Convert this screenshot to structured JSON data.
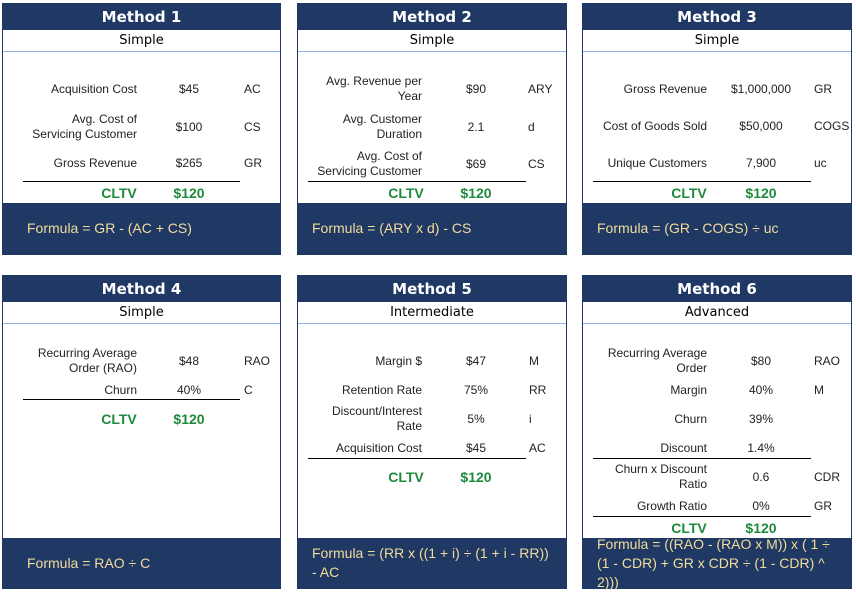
{
  "m1": {
    "title": "Method 1",
    "level": "Simple",
    "rows": [
      {
        "label": "Acquisition Cost",
        "value": "$45",
        "abbr": "AC"
      },
      {
        "label": "Avg. Cost of Servicing Customer",
        "value": "$100",
        "abbr": "CS"
      },
      {
        "label": "Gross Revenue",
        "value": "$265",
        "abbr": "GR"
      }
    ],
    "cltv_label": "CLTV",
    "cltv_value": "$120",
    "formula": "Formula = GR - (AC + CS)"
  },
  "m2": {
    "title": "Method 2",
    "level": "Simple",
    "rows": [
      {
        "label": "Avg. Revenue per Year",
        "value": "$90",
        "abbr": "ARY"
      },
      {
        "label": "Avg. Customer Duration",
        "value": "2.1",
        "abbr": "d"
      },
      {
        "label": "Avg. Cost of Servicing Customer",
        "value": "$69",
        "abbr": "CS"
      }
    ],
    "cltv_label": "CLTV",
    "cltv_value": "$120",
    "formula": "Formula = (ARY x d) - CS"
  },
  "m3": {
    "title": "Method 3",
    "level": "Simple",
    "rows": [
      {
        "label": "Gross Revenue",
        "value": "$1,000,000",
        "abbr": "GR"
      },
      {
        "label": "Cost of Goods Sold",
        "value": "$50,000",
        "abbr": "COGS"
      },
      {
        "label": "Unique Customers",
        "value": "7,900",
        "abbr": "uc"
      }
    ],
    "cltv_label": "CLTV",
    "cltv_value": "$120",
    "formula": "Formula = (GR - COGS) ÷ uc"
  },
  "m4": {
    "title": "Method 4",
    "level": "Simple",
    "rows": [
      {
        "label": "Recurring Average Order (RAO)",
        "value": "$48",
        "abbr": "RAO"
      },
      {
        "label": "Churn",
        "value": "40%",
        "abbr": "C"
      }
    ],
    "cltv_label": "CLTV",
    "cltv_value": "$120",
    "formula": "Formula = RAO ÷ C"
  },
  "m5": {
    "title": "Method 5",
    "level": "Intermediate",
    "rows": [
      {
        "label": "Margin $",
        "value": "$47",
        "abbr": "M"
      },
      {
        "label": "Retention Rate",
        "value": "75%",
        "abbr": "RR"
      },
      {
        "label": "Discount/Interest Rate",
        "value": "5%",
        "abbr": "i"
      },
      {
        "label": "Acquisition Cost",
        "value": "$45",
        "abbr": "AC"
      }
    ],
    "cltv_label": "CLTV",
    "cltv_value": "$120",
    "formula": "Formula = (RR x ((1 + i) ÷ (1 + i - RR)) - AC"
  },
  "m6": {
    "title": "Method 6",
    "level": "Advanced",
    "rows": [
      {
        "label": "Recurring Average Order",
        "value": "$80",
        "abbr": "RAO"
      },
      {
        "label": "Margin",
        "value": "40%",
        "abbr": "M"
      },
      {
        "label": "Churn",
        "value": "39%",
        "abbr": ""
      },
      {
        "label": "Discount",
        "value": "1.4%",
        "abbr": ""
      },
      {
        "label": "Churn x Discount Ratio",
        "value": "0.6",
        "abbr": "CDR"
      },
      {
        "label": "Growth Ratio",
        "value": "0%",
        "abbr": "GR"
      }
    ],
    "cltv_label": "CLTV",
    "cltv_value": "$120",
    "formula": "Formula = ((RAO - (RAO x M)) x ( 1 ÷ (1 - CDR) + GR x CDR ÷ (1 - CDR) ^ 2)))"
  }
}
